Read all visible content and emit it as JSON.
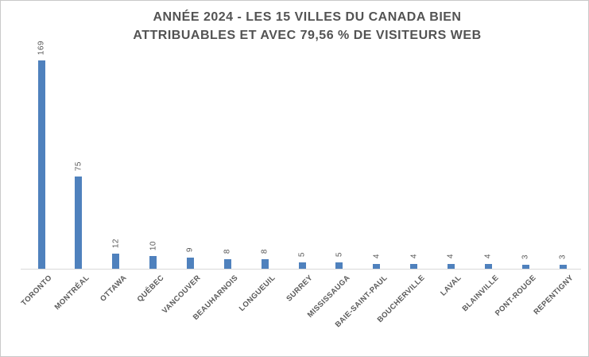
{
  "chart_data": {
    "type": "bar",
    "title": "ANNÉE 2024 - LES 15 VILLES DU CANADA BIEN ATTRIBUABLES ET AVEC 79,56 % DE VISITEURS WEB",
    "title_lines": [
      "ANNÉE 2024 - LES 15 VILLES DU CANADA BIEN",
      "ATTRIBUABLES ET AVEC 79,56 % DE VISITEURS WEB"
    ],
    "categories": [
      "TORONTO",
      "MONTRÉAL",
      "OTTAWA",
      "QUÉBEC",
      "VANCOUVER",
      "BEAUHARNOIS",
      "LONGUEUIL",
      "SURREY",
      "MISSISSAUGA",
      "BAIE-SAINT-PAUL",
      "BOUCHERVILLE",
      "LAVAL",
      "BLAINVILLE",
      "PONT-ROUGE",
      "REPENTIGNY"
    ],
    "values": [
      169,
      75,
      12,
      10,
      9,
      8,
      8,
      5,
      5,
      4,
      4,
      4,
      4,
      3,
      3
    ],
    "xlabel": "",
    "ylabel": "",
    "ylim": [
      0,
      180
    ],
    "grid": false,
    "legend": false,
    "value_labels_style": "rotated-90-above-bars",
    "category_labels_style": "rotated-45",
    "colors": {
      "bar": "#4F81BD",
      "title": "#535353",
      "labels": "#595959",
      "axis_line": "#d9d9d9",
      "frame_border": "#c9c9c9",
      "background": "#ffffff"
    }
  }
}
